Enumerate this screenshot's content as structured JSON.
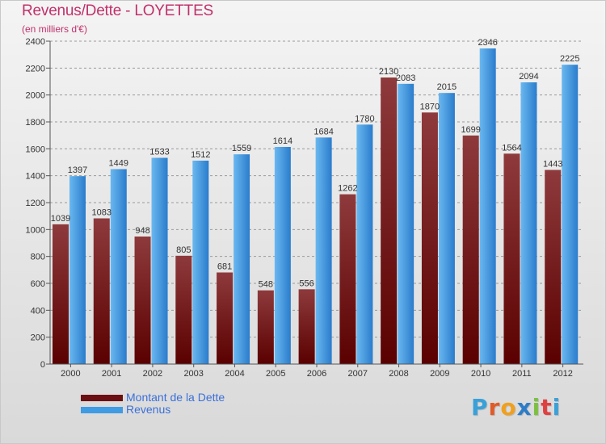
{
  "header": {
    "title": "Revenus/Dette - LOYETTES",
    "subtitle": "(en milliers d'€)"
  },
  "legend": {
    "items": [
      {
        "label": "Montant de la Dette",
        "color": "#6b0f12"
      },
      {
        "label": "Revenus",
        "color": "#3f9be3"
      }
    ]
  },
  "logo": {
    "text": "Proxiti",
    "letters": [
      {
        "ch": "P",
        "color": "#3aa0d8"
      },
      {
        "ch": "r",
        "color": "#e05a2a"
      },
      {
        "ch": "o",
        "color": "#f0a020"
      },
      {
        "ch": "x",
        "color": "#2c7cc8"
      },
      {
        "ch": "i",
        "color": "#7cc040"
      },
      {
        "ch": "t",
        "color": "#e04040"
      },
      {
        "ch": "i",
        "color": "#3aa0d8"
      }
    ]
  },
  "chart_data": {
    "type": "bar",
    "title": "Revenus/Dette - LOYETTES",
    "subtitle": "(en milliers d'€)",
    "categories": [
      "2000",
      "2001",
      "2002",
      "2003",
      "2004",
      "2005",
      "2006",
      "2007",
      "2008",
      "2009",
      "2010",
      "2011",
      "2012"
    ],
    "series": [
      {
        "name": "Montant de la Dette",
        "color": "#6b0f12",
        "values": [
          1039,
          1083,
          948,
          805,
          681,
          548,
          556,
          1262,
          2130,
          1870,
          1699,
          1564,
          1443
        ]
      },
      {
        "name": "Revenus",
        "color": "#3f9be3",
        "values": [
          1397,
          1449,
          1533,
          1512,
          1559,
          1614,
          1684,
          1780,
          2083,
          2015,
          2346,
          2094,
          2225
        ]
      }
    ],
    "yticks": [
      0,
      200,
      400,
      600,
      800,
      1000,
      1200,
      1400,
      1600,
      1800,
      2000,
      2200,
      2400
    ],
    "ylim": [
      0,
      2400
    ],
    "xlabel": "",
    "ylabel": "",
    "grid": true,
    "legend_position": "bottom-left"
  }
}
